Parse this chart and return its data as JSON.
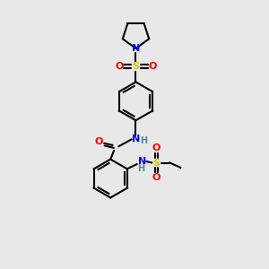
{
  "background_color": "#e8e8e8",
  "bond_color": "#000000",
  "atom_colors": {
    "N": "#0000ff",
    "O": "#ff0000",
    "S": "#cccc00",
    "C": "#000000",
    "H": "#4a9090"
  },
  "figsize": [
    3.0,
    3.0
  ],
  "dpi": 100
}
